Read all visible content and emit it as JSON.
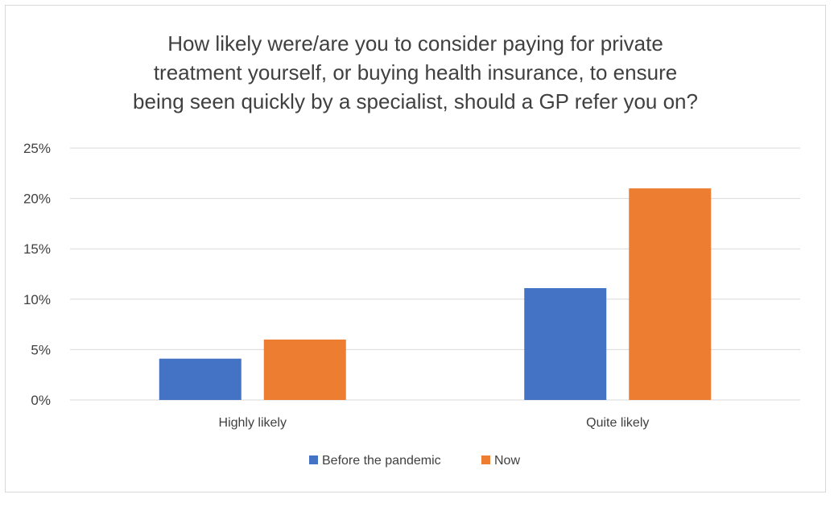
{
  "chart_data": {
    "type": "bar",
    "title_lines": [
      "How likely were/are you to consider paying for private",
      "treatment yourself, or buying health insurance, to ensure",
      "being seen quickly by a specialist, should a GP refer you on?"
    ],
    "categories": [
      "Highly likely",
      "Quite likely"
    ],
    "series": [
      {
        "name": "Before the pandemic",
        "color": "#4472c4",
        "values": [
          4.1,
          11.1
        ]
      },
      {
        "name": "Now",
        "color": "#ed7d31",
        "values": [
          6.0,
          21.0
        ]
      }
    ],
    "y_ticks": [
      "0%",
      "5%",
      "10%",
      "15%",
      "20%",
      "25%"
    ],
    "ylim": [
      0,
      25
    ],
    "grid": true,
    "legend_position": "bottom",
    "gridline_color": "#d9d9d9",
    "xlabel": "",
    "ylabel": ""
  }
}
